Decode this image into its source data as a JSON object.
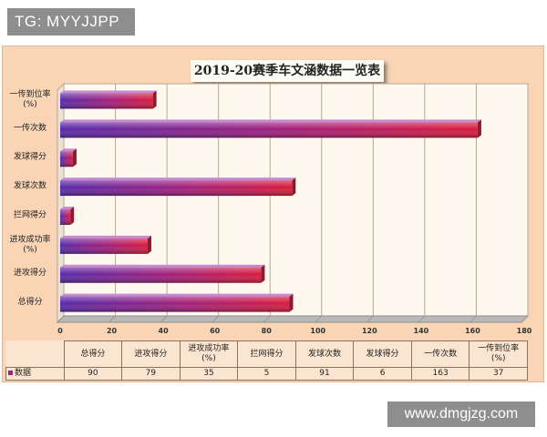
{
  "watermark_top": "TG: MYYJJPP",
  "watermark_bottom": "www.dmgjzg.com",
  "chart_data": {
    "type": "bar",
    "orientation": "horizontal",
    "title": "2019-20赛季车文涵数据一览表",
    "categories": [
      "总得分",
      "进攻得分",
      "进攻成功率(%)",
      "拦网得分",
      "发球次数",
      "发球得分",
      "一传次数",
      "一传到位率(%)"
    ],
    "series": [
      {
        "name": "数据",
        "values": [
          90,
          79,
          35,
          5,
          91,
          6,
          163,
          37
        ]
      }
    ],
    "xlim": [
      0,
      180
    ],
    "ticks": [
      "0",
      "20",
      "40",
      "60",
      "80",
      "100",
      "120",
      "140",
      "160",
      "180"
    ],
    "grid": true,
    "style": "3d-gradient",
    "colors": {
      "bar_start": "#5a2aa8",
      "bar_mid": "#a4207a",
      "bar_end": "#d81c3c",
      "background": "#f9d5b5"
    }
  },
  "table": {
    "headers": [
      "总得分",
      "进攻得分",
      "进攻成功率\n(%)",
      "拦网得分",
      "发球次数",
      "发球得分",
      "一传次数",
      "一传到位率\n(%)"
    ],
    "row_label": "数据",
    "values": [
      "90",
      "79",
      "35",
      "5",
      "91",
      "6",
      "163",
      "37"
    ]
  }
}
